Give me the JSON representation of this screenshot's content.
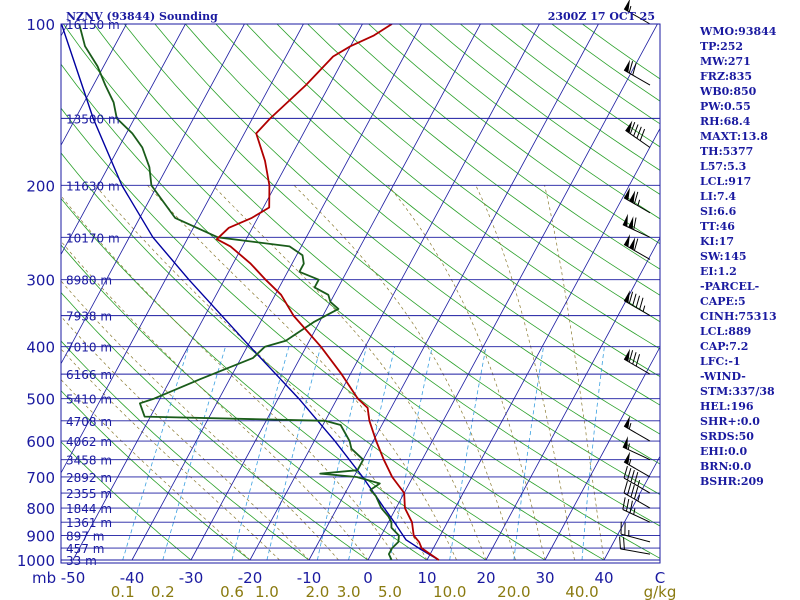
{
  "header": {
    "title": "NZNV (93844) Sounding",
    "time": "2300Z 17 OCT 25"
  },
  "indices": [
    "WMO:93844",
    "TP:252",
    "MW:271",
    "FRZ:835",
    "WB0:850",
    "PW:0.55",
    "RH:68.4",
    "MAXT:13.8",
    "TH:5377",
    "L57:5.3",
    "LCL:917",
    "LI:7.4",
    "SI:6.6",
    "TT:46",
    "KI:17",
    "SW:145",
    "EI:1.2",
    "-PARCEL-",
    "CAPE:5",
    "CINH:75313",
    "LCL:889",
    "CAP:7.2",
    "LFC:-1",
    "-WIND-",
    "STM:337/38",
    "HEL:196",
    "SHR+:0.0",
    "SRDS:50",
    "EHI:0.0",
    "BRN:0.0",
    "BSHR:209"
  ],
  "colors": {
    "axes": "#1a1aa0",
    "isotherm": "#1a1aa0",
    "dry_adiabat": "#2aa02a",
    "moist_adiabat": "#8a7a30",
    "mixing_ratio": "#3aa0e0",
    "temperature": "#b00000",
    "dewpoint": "#1a5c1a",
    "parcel": "#0000a0",
    "wind_barb": "#000000"
  },
  "chart_data": {
    "type": "skew-t",
    "pressure_axis_label": "mb",
    "pressure_ticks": [
      "100",
      "200",
      "300",
      "400",
      "500",
      "600",
      "700",
      "800",
      "900",
      "1000"
    ],
    "temperature_ticks": [
      "-50",
      "-40",
      "-30",
      "-20",
      "-10",
      "0",
      "10",
      "20",
      "30",
      "40",
      "C"
    ],
    "mixing_ratio_ticks": [
      "0.1",
      "0.2",
      "0.6",
      "1.0",
      "2.0",
      "3.0",
      "5.0",
      "10.0",
      "20.0",
      "40.0",
      "g/kg"
    ],
    "height_labels": [
      {
        "p": 100,
        "label": "16150 m"
      },
      {
        "p": 150,
        "label": "13500 m"
      },
      {
        "p": 200,
        "label": "11630 m"
      },
      {
        "p": 250,
        "label": "10170 m"
      },
      {
        "p": 300,
        "label": "8980 m"
      },
      {
        "p": 350,
        "label": "7938 m"
      },
      {
        "p": 400,
        "label": "7010 m"
      },
      {
        "p": 450,
        "label": "6166 m"
      },
      {
        "p": 500,
        "label": "5410 m"
      },
      {
        "p": 550,
        "label": "4708 m"
      },
      {
        "p": 600,
        "label": "4062 m"
      },
      {
        "p": 650,
        "label": "3458 m"
      },
      {
        "p": 700,
        "label": "2892 m"
      },
      {
        "p": 750,
        "label": "2355 m"
      },
      {
        "p": 800,
        "label": "1844 m"
      },
      {
        "p": 850,
        "label": "1361 m"
      },
      {
        "p": 900,
        "label": "897 m"
      },
      {
        "p": 950,
        "label": "457 m"
      },
      {
        "p": 1000,
        "label": "33 m"
      }
    ],
    "temperature_profile": [
      {
        "p": 1000,
        "t": 12.0
      },
      {
        "p": 975,
        "t": 10.0
      },
      {
        "p": 950,
        "t": 8.0
      },
      {
        "p": 925,
        "t": 7.0
      },
      {
        "p": 900,
        "t": 5.5
      },
      {
        "p": 850,
        "t": 4.0
      },
      {
        "p": 800,
        "t": 1.5
      },
      {
        "p": 750,
        "t": 0.0
      },
      {
        "p": 700,
        "t": -3.5
      },
      {
        "p": 650,
        "t": -6.5
      },
      {
        "p": 600,
        "t": -9.5
      },
      {
        "p": 550,
        "t": -12.5
      },
      {
        "p": 520,
        "t": -14.0
      },
      {
        "p": 500,
        "t": -16.5
      },
      {
        "p": 450,
        "t": -21.5
      },
      {
        "p": 400,
        "t": -27.5
      },
      {
        "p": 350,
        "t": -35.0
      },
      {
        "p": 320,
        "t": -39.0
      },
      {
        "p": 300,
        "t": -43.0
      },
      {
        "p": 280,
        "t": -47.0
      },
      {
        "p": 260,
        "t": -52.0
      },
      {
        "p": 252,
        "t": -55.0
      },
      {
        "p": 240,
        "t": -54.0
      },
      {
        "p": 230,
        "t": -51.0
      },
      {
        "p": 220,
        "t": -49.0
      },
      {
        "p": 200,
        "t": -51.0
      },
      {
        "p": 180,
        "t": -54.0
      },
      {
        "p": 160,
        "t": -58.0
      },
      {
        "p": 150,
        "t": -57.0
      },
      {
        "p": 130,
        "t": -54.0
      },
      {
        "p": 115,
        "t": -52.0
      },
      {
        "p": 110,
        "t": -50.0
      },
      {
        "p": 105,
        "t": -47.0
      },
      {
        "p": 100,
        "t": -45.0
      }
    ],
    "dewpoint_profile": [
      {
        "p": 1000,
        "t": 4.0
      },
      {
        "p": 975,
        "t": 3.0
      },
      {
        "p": 950,
        "t": 3.0
      },
      {
        "p": 925,
        "t": 3.5
      },
      {
        "p": 900,
        "t": 3.0
      },
      {
        "p": 870,
        "t": 1.0
      },
      {
        "p": 850,
        "t": 0.5
      },
      {
        "p": 830,
        "t": -0.5
      },
      {
        "p": 800,
        "t": -2.5
      },
      {
        "p": 760,
        "t": -4.5
      },
      {
        "p": 740,
        "t": -6.0
      },
      {
        "p": 720,
        "t": -5.0
      },
      {
        "p": 700,
        "t": -9.5
      },
      {
        "p": 690,
        "t": -16.0
      },
      {
        "p": 680,
        "t": -10.0
      },
      {
        "p": 650,
        "t": -10.0
      },
      {
        "p": 620,
        "t": -13.0
      },
      {
        "p": 600,
        "t": -14.0
      },
      {
        "p": 560,
        "t": -17.0
      },
      {
        "p": 550,
        "t": -20.0
      },
      {
        "p": 540,
        "t": -51.0
      },
      {
        "p": 510,
        "t": -53.0
      },
      {
        "p": 500,
        "t": -51.0
      },
      {
        "p": 460,
        "t": -45.0
      },
      {
        "p": 420,
        "t": -38.0
      },
      {
        "p": 400,
        "t": -37.0
      },
      {
        "p": 390,
        "t": -34.0
      },
      {
        "p": 360,
        "t": -31.0
      },
      {
        "p": 340,
        "t": -28.0
      },
      {
        "p": 330,
        "t": -30.0
      },
      {
        "p": 320,
        "t": -31.0
      },
      {
        "p": 310,
        "t": -34.0
      },
      {
        "p": 300,
        "t": -34.0
      },
      {
        "p": 290,
        "t": -38.0
      },
      {
        "p": 280,
        "t": -38.0
      },
      {
        "p": 270,
        "t": -39.0
      },
      {
        "p": 260,
        "t": -42.0
      },
      {
        "p": 250,
        "t": -55.0
      },
      {
        "p": 230,
        "t": -64.0
      },
      {
        "p": 200,
        "t": -71.0
      },
      {
        "p": 185,
        "t": -73.0
      },
      {
        "p": 170,
        "t": -76.0
      },
      {
        "p": 160,
        "t": -79.0
      },
      {
        "p": 150,
        "t": -83.0
      },
      {
        "p": 140,
        "t": -85.0
      },
      {
        "p": 130,
        "t": -88.0
      },
      {
        "p": 120,
        "t": -91.0
      },
      {
        "p": 110,
        "t": -95.0
      },
      {
        "p": 100,
        "t": -98.0
      }
    ],
    "parcel_profile": [
      {
        "p": 1000,
        "t": 12.0
      },
      {
        "p": 950,
        "t": 7.5
      },
      {
        "p": 917,
        "t": 4.6
      },
      {
        "p": 900,
        "t": 3.7
      },
      {
        "p": 850,
        "t": 1.0
      },
      {
        "p": 800,
        "t": -2.0
      },
      {
        "p": 700,
        "t": -8.5
      },
      {
        "p": 600,
        "t": -16.5
      },
      {
        "p": 500,
        "t": -26.5
      },
      {
        "p": 400,
        "t": -39.5
      },
      {
        "p": 300,
        "t": -56.0
      },
      {
        "p": 250,
        "t": -66.0
      },
      {
        "p": 200,
        "t": -76.0
      },
      {
        "p": 150,
        "t": -87.0
      },
      {
        "p": 100,
        "t": -101.0
      }
    ],
    "wind_barbs": [
      {
        "p": 975,
        "dir": 280,
        "spd": 20
      },
      {
        "p": 925,
        "dir": 285,
        "spd": 25
      },
      {
        "p": 850,
        "dir": 295,
        "spd": 35
      },
      {
        "p": 800,
        "dir": 300,
        "spd": 45
      },
      {
        "p": 750,
        "dir": 300,
        "spd": 45
      },
      {
        "p": 700,
        "dir": 300,
        "spd": 55
      },
      {
        "p": 650,
        "dir": 295,
        "spd": 55
      },
      {
        "p": 600,
        "dir": 300,
        "spd": 55
      },
      {
        "p": 450,
        "dir": 300,
        "spd": 80
      },
      {
        "p": 350,
        "dir": 300,
        "spd": 95
      },
      {
        "p": 275,
        "dir": 300,
        "spd": 110
      },
      {
        "p": 250,
        "dir": 295,
        "spd": 110
      },
      {
        "p": 225,
        "dir": 300,
        "spd": 115
      },
      {
        "p": 170,
        "dir": 305,
        "spd": 90
      },
      {
        "p": 130,
        "dir": 300,
        "spd": 70
      },
      {
        "p": 100,
        "dir": 300,
        "spd": 55
      }
    ]
  }
}
